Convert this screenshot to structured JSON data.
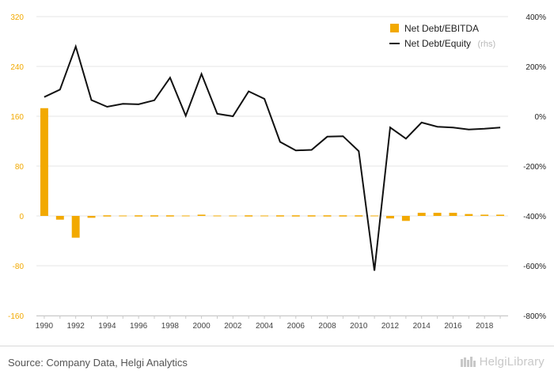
{
  "chart_data": {
    "type": "bar+line",
    "x": [
      1990,
      1991,
      1992,
      1993,
      1994,
      1995,
      1996,
      1997,
      1998,
      1999,
      2000,
      2001,
      2002,
      2003,
      2004,
      2005,
      2006,
      2007,
      2008,
      2009,
      2010,
      2011,
      2012,
      2013,
      2014,
      2015,
      2016,
      2017,
      2018,
      2019
    ],
    "x_tick_labels": [
      "1990",
      "1992",
      "1994",
      "1996",
      "1998",
      "2000",
      "2002",
      "2004",
      "2006",
      "2008",
      "2010",
      "2012",
      "2014",
      "2016",
      "2018"
    ],
    "y_left": {
      "ticks": [
        "320",
        "240",
        "160",
        "80",
        "0",
        "-80",
        "-160"
      ],
      "ylim": [
        -160,
        320
      ]
    },
    "y_right": {
      "ticks": [
        "400%",
        "200%",
        "0%",
        "-200%",
        "-400%",
        "-600%",
        "-800%"
      ],
      "ylim": [
        -800,
        400
      ]
    },
    "series": [
      {
        "name": "Net Debt/EBITDA",
        "axis": "left",
        "type": "bar",
        "color": "#f2a900",
        "values": [
          173,
          -6,
          -35,
          -3,
          -1,
          0,
          -1,
          -1,
          -1,
          0,
          2,
          0,
          0,
          -1,
          0,
          -1,
          -1,
          1,
          -1,
          1,
          -1,
          0,
          -4,
          -8,
          5,
          5,
          5,
          3,
          2,
          2
        ]
      },
      {
        "name": "Net Debt/Equity",
        "name_suffix": "(rhs)",
        "axis": "right",
        "type": "line",
        "color": "#111111",
        "values": [
          77,
          107,
          280,
          65,
          38,
          50,
          48,
          64,
          155,
          2,
          170,
          10,
          0,
          100,
          70,
          -103,
          -137,
          -135,
          -82,
          -80,
          -140,
          -620,
          -45,
          -90,
          -25,
          -42,
          -45,
          -53,
          -50,
          -45
        ]
      }
    ],
    "legend_position": "top-right",
    "grid": true
  },
  "footer": {
    "source": "Source: Company Data, Helgi Analytics",
    "brand": "HelgiLibrary"
  }
}
